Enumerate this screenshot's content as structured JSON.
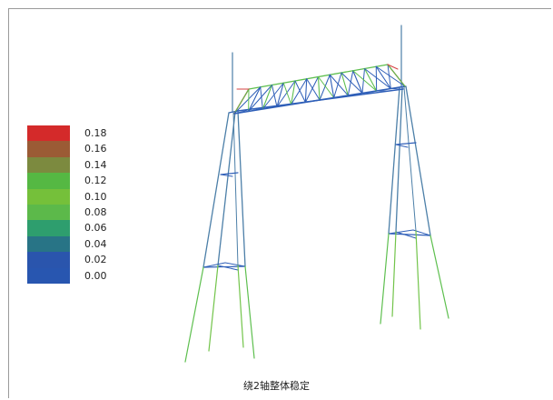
{
  "caption": "绕2轴整体稳定",
  "legend": {
    "items": [
      {
        "label": "0.18",
        "color": "#d42a2a"
      },
      {
        "label": "0.16",
        "color": "#9b5b35"
      },
      {
        "label": "0.14",
        "color": "#7c8a3f"
      },
      {
        "label": "0.12",
        "color": "#55b843"
      },
      {
        "label": "0.10",
        "color": "#75c03a"
      },
      {
        "label": "0.08",
        "color": "#5cb94a"
      },
      {
        "label": "0.06",
        "color": "#2e9e6e"
      },
      {
        "label": "0.04",
        "color": "#287486"
      },
      {
        "label": "0.02",
        "color": "#2a55ad"
      },
      {
        "label": "0.00",
        "color": "#2856b0"
      }
    ]
  },
  "colors": {
    "blue": "#2f5fb8",
    "steel": "#4c7fa8",
    "green": "#5dbf4e",
    "lightgreen": "#72c44a",
    "red": "#d64040",
    "border": "#9a9a9a"
  }
}
